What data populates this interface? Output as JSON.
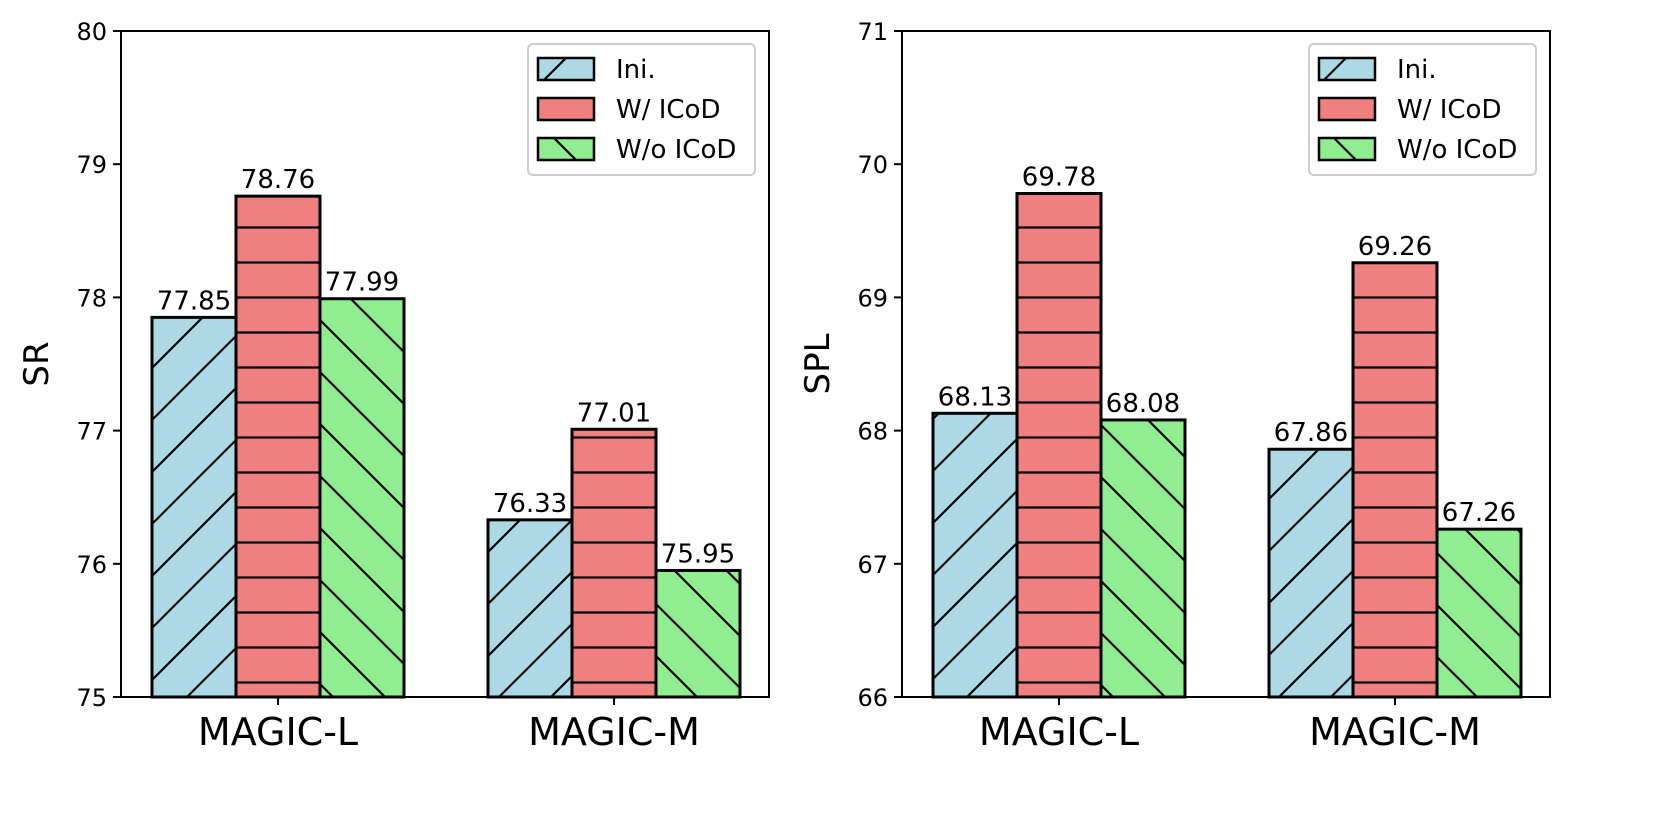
{
  "chart_data": [
    {
      "type": "bar",
      "categories": [
        "MAGIC-L",
        "MAGIC-M"
      ],
      "xlabel": "",
      "ylabel": "SR",
      "ylim": [
        75,
        80
      ],
      "yticks": [
        "75",
        "76",
        "77",
        "78",
        "79",
        "80"
      ],
      "grid": false,
      "legend_position": "top-right",
      "series": [
        {
          "name": "Ini.",
          "values": [
            77.85,
            76.33
          ],
          "labels": [
            "77.85",
            "76.33"
          ],
          "color": "#add8e6",
          "hatch": "forward-diagonal"
        },
        {
          "name": "W/ ICoD",
          "values": [
            78.76,
            77.01
          ],
          "labels": [
            "78.76",
            "77.01"
          ],
          "color": "#f08080",
          "hatch": "horizontal"
        },
        {
          "name": "W/o ICoD",
          "values": [
            77.99,
            75.95
          ],
          "labels": [
            "77.99",
            "75.95"
          ],
          "color": "#90ee90",
          "hatch": "back-diagonal"
        }
      ]
    },
    {
      "type": "bar",
      "categories": [
        "MAGIC-L",
        "MAGIC-M"
      ],
      "xlabel": "",
      "ylabel": "SPL",
      "ylim": [
        66,
        71
      ],
      "yticks": [
        "66",
        "67",
        "68",
        "69",
        "70",
        "71"
      ],
      "grid": false,
      "legend_position": "top-right",
      "series": [
        {
          "name": "Ini.",
          "values": [
            68.13,
            67.86
          ],
          "labels": [
            "68.13",
            "67.86"
          ],
          "color": "#add8e6",
          "hatch": "forward-diagonal"
        },
        {
          "name": "W/ ICoD",
          "values": [
            69.78,
            69.26
          ],
          "labels": [
            "69.78",
            "69.26"
          ],
          "color": "#f08080",
          "hatch": "horizontal"
        },
        {
          "name": "W/o ICoD",
          "values": [
            68.08,
            67.26
          ],
          "labels": [
            "68.08",
            "67.26"
          ],
          "color": "#90ee90",
          "hatch": "back-diagonal"
        }
      ]
    }
  ]
}
